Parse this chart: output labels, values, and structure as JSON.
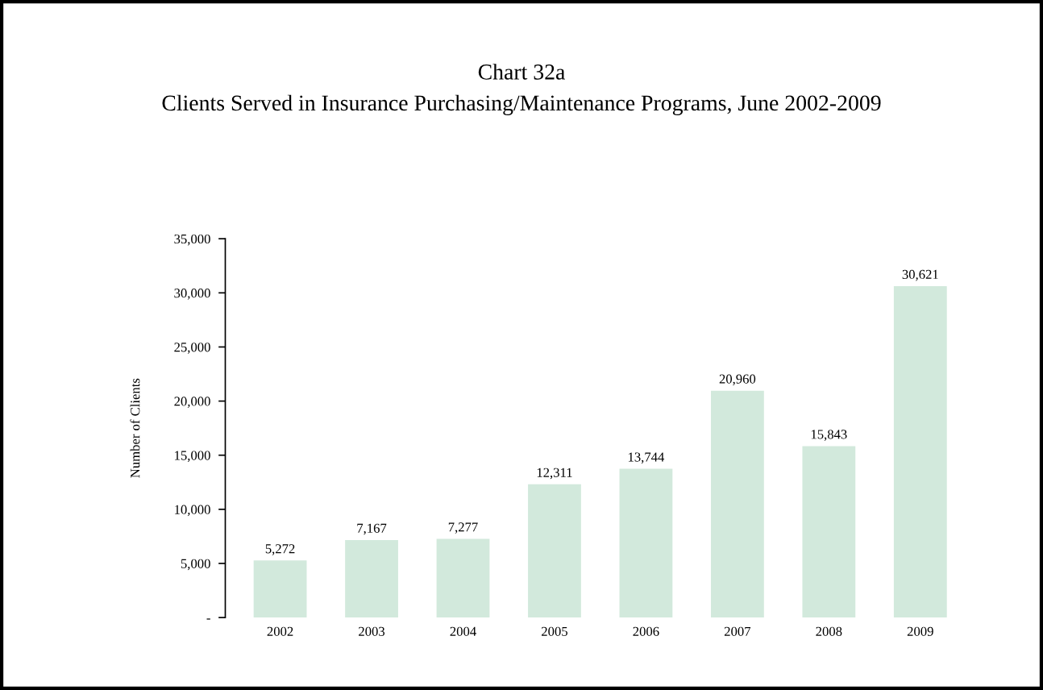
{
  "chart_data": {
    "type": "bar",
    "title": "Chart 32a",
    "subtitle": "Clients Served in Insurance Purchasing/Maintenance Programs, June 2002-2009",
    "ylabel": "Number of Clients",
    "categories": [
      "2002",
      "2003",
      "2004",
      "2005",
      "2006",
      "2007",
      "2008",
      "2009"
    ],
    "values": [
      5272,
      7167,
      7277,
      12311,
      13744,
      20960,
      15843,
      30621
    ],
    "color": "#d2e9dc",
    "value_labels": [
      "5,272",
      "7,167",
      "7,277",
      "12,311",
      "13,744",
      "20,960",
      "15,843",
      "30,621"
    ],
    "ylim": [
      0,
      35000
    ],
    "yticks": [
      {
        "value": 0,
        "label": "-"
      },
      {
        "value": 5000,
        "label": "5,000"
      },
      {
        "value": 10000,
        "label": "10,000"
      },
      {
        "value": 15000,
        "label": "15,000"
      },
      {
        "value": 20000,
        "label": "20,000"
      },
      {
        "value": 25000,
        "label": "25,000"
      },
      {
        "value": 30000,
        "label": "30,000"
      },
      {
        "value": 35000,
        "label": "35,000"
      }
    ],
    "grid": false,
    "legend": false
  }
}
